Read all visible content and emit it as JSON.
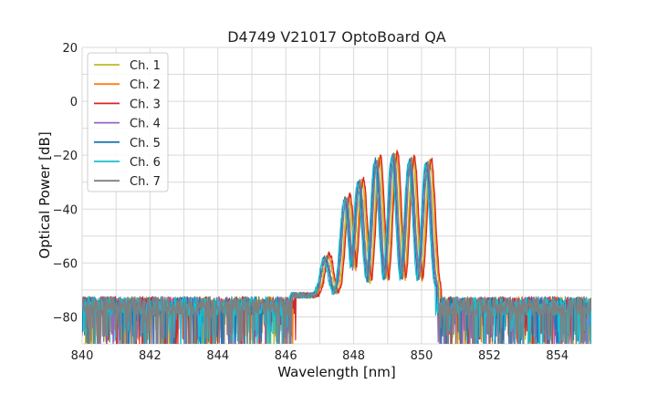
{
  "chart_data": {
    "type": "line",
    "title": "D4749 V21017 OptoBoard QA",
    "xlabel": "Wavelength [nm]",
    "ylabel": "Optical Power [dB]",
    "xlim": [
      840,
      855
    ],
    "ylim": [
      -90,
      20
    ],
    "xticks": [
      840,
      842,
      844,
      846,
      848,
      850,
      852,
      854
    ],
    "yticks": [
      -80,
      -60,
      -40,
      -20,
      0,
      20
    ],
    "xtick_labels": [
      "840",
      "842",
      "844",
      "846",
      "848",
      "850",
      "852",
      "854"
    ],
    "ytick_labels": [
      "−80",
      "−60",
      "−40",
      "−20",
      "0",
      "20"
    ],
    "grid": true,
    "legend_position": "top-left",
    "noise_floor_db": -76,
    "peaks": [
      {
        "wavelength": 847.2,
        "power": -58
      },
      {
        "wavelength": 847.8,
        "power": -36
      },
      {
        "wavelength": 848.2,
        "power": -30
      },
      {
        "wavelength": 848.7,
        "power": -22
      },
      {
        "wavelength": 849.2,
        "power": -20
      },
      {
        "wavelength": 849.7,
        "power": -22
      },
      {
        "wavelength": 850.2,
        "power": -23
      }
    ],
    "series": [
      {
        "name": "Ch. 1",
        "color": "#bcbd22",
        "shift": 0.04,
        "offset": 0.5
      },
      {
        "name": "Ch. 2",
        "color": "#ff7f0e",
        "shift": 0.07,
        "offset": 1.0
      },
      {
        "name": "Ch. 3",
        "color": "#d62728",
        "shift": 0.09,
        "offset": 1.5
      },
      {
        "name": "Ch. 4",
        "color": "#9467bd",
        "shift": -0.03,
        "offset": -0.5
      },
      {
        "name": "Ch. 5",
        "color": "#1f77b4",
        "shift": -0.06,
        "offset": 0.0
      },
      {
        "name": "Ch. 6",
        "color": "#17becf",
        "shift": -0.09,
        "offset": -1.0
      },
      {
        "name": "Ch. 7",
        "color": "#7f7f7f",
        "shift": -0.01,
        "offset": 0.3
      }
    ]
  }
}
